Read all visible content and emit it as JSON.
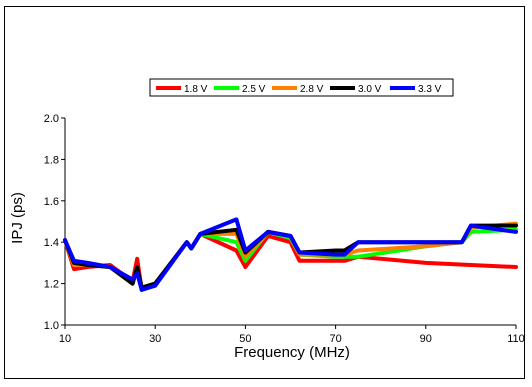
{
  "chart_data": {
    "type": "line",
    "title": "",
    "xlabel": "Frequency (MHz)",
    "ylabel": "IPJ (ps)",
    "xlim": [
      10,
      110
    ],
    "ylim": [
      1.0,
      2.0
    ],
    "xticks": [
      10,
      30,
      50,
      70,
      90,
      110
    ],
    "yticks": [
      1.0,
      1.2,
      1.4,
      1.6,
      1.8,
      2.0
    ],
    "xtick_labels": [
      "10",
      "30",
      "50",
      "70",
      "90",
      "110"
    ],
    "ytick_labels": [
      "1.0",
      "1.2",
      "1.4",
      "1.6",
      "1.8",
      "2.0"
    ],
    "grid": false,
    "legend_position": "top-center",
    "series": [
      {
        "name": "1.8 V",
        "color": "#ff0000",
        "points": [
          [
            10,
            1.41
          ],
          [
            12,
            1.27
          ],
          [
            15,
            1.28
          ],
          [
            20,
            1.29
          ],
          [
            25,
            1.21
          ],
          [
            26,
            1.32
          ],
          [
            27,
            1.17
          ],
          [
            30,
            1.2
          ],
          [
            37,
            1.4
          ],
          [
            38,
            1.37
          ],
          [
            40,
            1.44
          ],
          [
            48,
            1.36
          ],
          [
            50,
            1.28
          ],
          [
            55,
            1.43
          ],
          [
            60,
            1.4
          ],
          [
            62,
            1.31
          ],
          [
            70,
            1.31
          ],
          [
            72,
            1.31
          ],
          [
            75,
            1.33
          ],
          [
            90,
            1.3
          ],
          [
            100,
            1.29
          ],
          [
            110,
            1.28
          ]
        ]
      },
      {
        "name": "2.5 V",
        "color": "#00ff00",
        "points": [
          [
            10,
            1.41
          ],
          [
            12,
            1.29
          ],
          [
            15,
            1.29
          ],
          [
            20,
            1.28
          ],
          [
            25,
            1.2
          ],
          [
            26,
            1.28
          ],
          [
            27,
            1.18
          ],
          [
            30,
            1.2
          ],
          [
            37,
            1.4
          ],
          [
            38,
            1.37
          ],
          [
            40,
            1.44
          ],
          [
            48,
            1.4
          ],
          [
            50,
            1.31
          ],
          [
            55,
            1.45
          ],
          [
            60,
            1.42
          ],
          [
            62,
            1.34
          ],
          [
            70,
            1.33
          ],
          [
            72,
            1.33
          ],
          [
            75,
            1.33
          ],
          [
            90,
            1.38
          ],
          [
            98,
            1.4
          ],
          [
            100,
            1.45
          ],
          [
            110,
            1.46
          ]
        ]
      },
      {
        "name": "2.8 V",
        "color": "#ff8000",
        "points": [
          [
            10,
            1.41
          ],
          [
            12,
            1.29
          ],
          [
            15,
            1.29
          ],
          [
            20,
            1.28
          ],
          [
            25,
            1.2
          ],
          [
            26,
            1.28
          ],
          [
            27,
            1.18
          ],
          [
            30,
            1.2
          ],
          [
            37,
            1.4
          ],
          [
            38,
            1.37
          ],
          [
            40,
            1.44
          ],
          [
            48,
            1.44
          ],
          [
            50,
            1.33
          ],
          [
            55,
            1.45
          ],
          [
            60,
            1.43
          ],
          [
            62,
            1.34
          ],
          [
            70,
            1.34
          ],
          [
            72,
            1.34
          ],
          [
            75,
            1.36
          ],
          [
            90,
            1.38
          ],
          [
            98,
            1.4
          ],
          [
            100,
            1.47
          ],
          [
            110,
            1.49
          ]
        ]
      },
      {
        "name": "3.0 V",
        "color": "#000000",
        "points": [
          [
            10,
            1.41
          ],
          [
            12,
            1.3
          ],
          [
            15,
            1.29
          ],
          [
            20,
            1.28
          ],
          [
            25,
            1.2
          ],
          [
            26,
            1.28
          ],
          [
            27,
            1.18
          ],
          [
            30,
            1.2
          ],
          [
            37,
            1.4
          ],
          [
            38,
            1.37
          ],
          [
            40,
            1.44
          ],
          [
            48,
            1.46
          ],
          [
            50,
            1.35
          ],
          [
            55,
            1.45
          ],
          [
            60,
            1.43
          ],
          [
            62,
            1.35
          ],
          [
            70,
            1.36
          ],
          [
            72,
            1.36
          ],
          [
            75,
            1.4
          ],
          [
            90,
            1.4
          ],
          [
            98,
            1.4
          ],
          [
            100,
            1.48
          ],
          [
            110,
            1.48
          ]
        ]
      },
      {
        "name": "3.3 V",
        "color": "#0000ff",
        "points": [
          [
            10,
            1.41
          ],
          [
            12,
            1.31
          ],
          [
            15,
            1.3
          ],
          [
            20,
            1.28
          ],
          [
            25,
            1.22
          ],
          [
            26,
            1.25
          ],
          [
            27,
            1.17
          ],
          [
            30,
            1.19
          ],
          [
            37,
            1.4
          ],
          [
            38,
            1.37
          ],
          [
            40,
            1.44
          ],
          [
            48,
            1.51
          ],
          [
            50,
            1.36
          ],
          [
            55,
            1.45
          ],
          [
            60,
            1.43
          ],
          [
            62,
            1.35
          ],
          [
            70,
            1.34
          ],
          [
            72,
            1.34
          ],
          [
            75,
            1.4
          ],
          [
            90,
            1.4
          ],
          [
            98,
            1.4
          ],
          [
            100,
            1.48
          ],
          [
            110,
            1.45
          ]
        ]
      }
    ]
  }
}
